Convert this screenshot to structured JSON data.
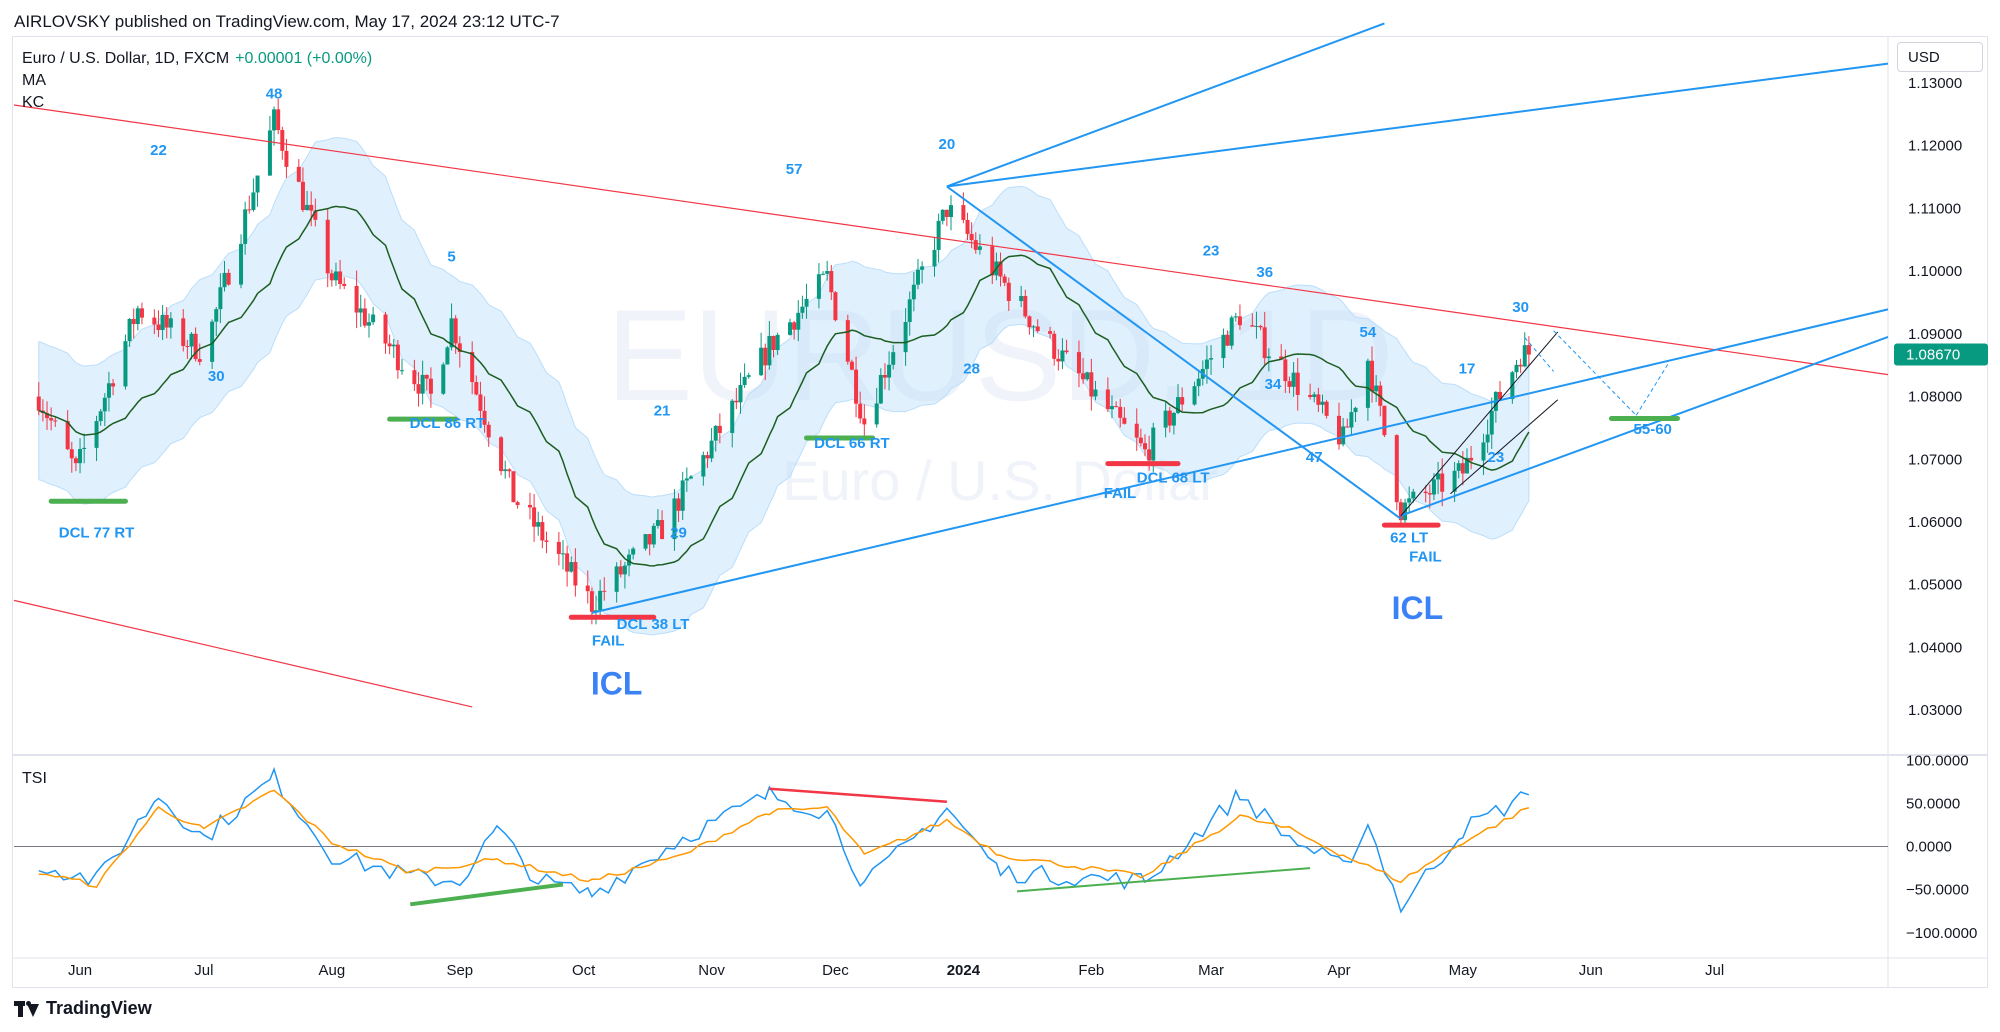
{
  "header": {
    "publisher_line": "AIRLOVSKY published on TradingView.com, May 17, 2024 23:12 UTC-7"
  },
  "legend": {
    "symbol": "Euro / U.S. Dollar, 1D, FXCM",
    "change": "+0.00001 (+0.00%)",
    "indicator_1": "MA",
    "indicator_2": "KC"
  },
  "currency": "USD",
  "watermark": {
    "symbol": "EURUSD, 1D",
    "name": "Euro / U.S. Dollar"
  },
  "footer": {
    "brand": "TradingView"
  },
  "colors": {
    "up_candle": "#089981",
    "down_candle": "#f23645",
    "ma_line": "#1b5e20",
    "kc_fill": "#bbdefb",
    "trendline_red": "#f23645",
    "trendline_blue": "#2196f3",
    "tsi_line": "#2196f3",
    "tsi_signal": "#ff9800",
    "green_marker": "#4caf50"
  },
  "chart_data": [
    {
      "type": "candlestick",
      "title": "Euro / U.S. Dollar, 1D, FXCM",
      "xlabel": "",
      "ylabel": "",
      "x_ticks": [
        "Jun",
        "Jul",
        "Aug",
        "Sep",
        "Oct",
        "Nov",
        "Dec",
        "2024",
        "Feb",
        "Mar",
        "Apr",
        "May",
        "Jun",
        "Jul"
      ],
      "y_ticks": [
        "1.13000",
        "1.12000",
        "1.11000",
        "1.10000",
        "1.09000",
        "1.08000",
        "1.07000",
        "1.06000",
        "1.05000",
        "1.04000",
        "1.03000"
      ],
      "ylim": [
        1.023,
        1.1375
      ],
      "last_price": "1.08670",
      "overlays": [
        "MA",
        "KC"
      ],
      "close_path": [
        [
          "2023-05-22",
          1.08
        ],
        [
          "2023-05-31",
          1.068
        ],
        [
          "2023-06-15",
          1.094
        ],
        [
          "2023-07-01",
          1.087
        ],
        [
          "2023-07-18",
          1.124
        ],
        [
          "2023-08-01",
          1.099
        ],
        [
          "2023-08-25",
          1.08
        ],
        [
          "2023-08-30",
          1.092
        ],
        [
          "2023-09-14",
          1.064
        ],
        [
          "2023-10-03",
          1.047
        ],
        [
          "2023-10-20",
          1.059
        ],
        [
          "2023-11-15",
          1.088
        ],
        [
          "2023-11-29",
          1.099
        ],
        [
          "2023-12-08",
          1.076
        ],
        [
          "2023-12-28",
          1.11
        ],
        [
          "2024-01-20",
          1.09
        ],
        [
          "2024-02-14",
          1.071
        ],
        [
          "2024-03-08",
          1.093
        ],
        [
          "2024-04-02",
          1.073
        ],
        [
          "2024-04-08",
          1.086
        ],
        [
          "2024-04-16",
          1.062
        ],
        [
          "2024-05-01",
          1.068
        ],
        [
          "2024-05-15",
          1.087
        ],
        [
          "2024-05-17",
          1.0867
        ]
      ],
      "annotations": [
        "48",
        "22",
        "30",
        "5",
        "21",
        "29",
        "57",
        "20",
        "28",
        "23",
        "36",
        "34",
        "47",
        "54",
        "17",
        "30",
        "23",
        "DCL 77 RT",
        "DCL 86 RT",
        "DCL 38 LT",
        "FAIL",
        "ICL",
        "DCL 66 RT",
        "DCL 68 LT",
        "FAIL",
        "62 LT",
        "FAIL",
        "ICL",
        "55-60"
      ]
    },
    {
      "type": "line",
      "title": "TSI",
      "y_ticks": [
        "100.0000",
        "50.0000",
        "0.0000",
        "−50.0000",
        "−100.0000"
      ],
      "ylim": [
        -120,
        105
      ],
      "series": [
        {
          "values": [
            [
              "2023-05-22",
              -20
            ],
            [
              "2023-06-05",
              -40
            ],
            [
              "2023-06-20",
              60
            ],
            [
              "2023-07-01",
              10
            ],
            [
              "2023-07-18",
              80
            ],
            [
              "2023-08-01",
              -10
            ],
            [
              "2023-08-20",
              -35
            ],
            [
              "2023-09-01",
              -40
            ],
            [
              "2023-09-10",
              20
            ],
            [
              "2023-09-20",
              -40
            ],
            [
              "2023-10-03",
              -55
            ],
            [
              "2023-10-25",
              10
            ],
            [
              "2023-11-15",
              60
            ],
            [
              "2023-11-29",
              40
            ],
            [
              "2023-12-08",
              -45
            ],
            [
              "2023-12-28",
              45
            ],
            [
              "2024-01-10",
              -30
            ],
            [
              "2024-02-14",
              -40
            ],
            [
              "2024-03-08",
              60
            ],
            [
              "2024-03-20",
              10
            ],
            [
              "2024-04-02",
              -25
            ],
            [
              "2024-04-08",
              25
            ],
            [
              "2024-04-16",
              -70
            ],
            [
              "2024-05-01",
              20
            ],
            [
              "2024-05-17",
              60
            ]
          ]
        },
        {
          "values": [
            [
              "2023-05-22",
              -30
            ],
            [
              "2023-06-05",
              -45
            ],
            [
              "2023-06-20",
              45
            ],
            [
              "2023-07-01",
              20
            ],
            [
              "2023-07-18",
              65
            ],
            [
              "2023-08-01",
              5
            ],
            [
              "2023-08-20",
              -30
            ],
            [
              "2023-09-10",
              -15
            ],
            [
              "2023-10-03",
              -40
            ],
            [
              "2023-10-25",
              -10
            ],
            [
              "2023-11-15",
              40
            ],
            [
              "2023-11-29",
              45
            ],
            [
              "2023-12-08",
              -10
            ],
            [
              "2023-12-28",
              30
            ],
            [
              "2024-01-10",
              -10
            ],
            [
              "2024-02-14",
              -35
            ],
            [
              "2024-03-08",
              35
            ],
            [
              "2024-03-20",
              20
            ],
            [
              "2024-04-02",
              -10
            ],
            [
              "2024-04-16",
              -40
            ],
            [
              "2024-05-01",
              5
            ],
            [
              "2024-05-17",
              45
            ]
          ]
        }
      ]
    }
  ]
}
